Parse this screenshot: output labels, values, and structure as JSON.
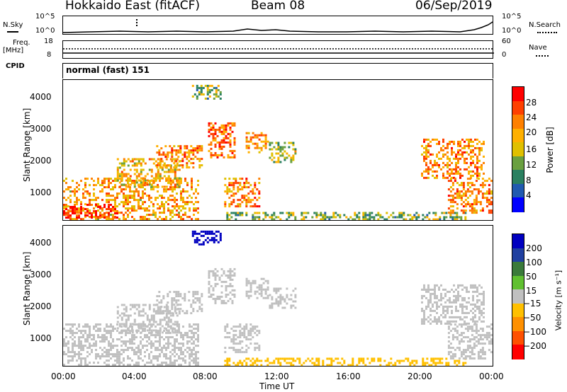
{
  "header": {
    "title": "Hokkaido East (fitACF)",
    "beam": "Beam 08",
    "date": "06/Sep/2019"
  },
  "strip1": {
    "left_label": "N.Sky",
    "right_label": "N.Search",
    "left_ticks": [
      "10^5",
      "10^0"
    ],
    "right_ticks": [
      "10^5",
      "10^0"
    ]
  },
  "strip2": {
    "left_label_1": "Freq.",
    "left_label_2": "[MHz]",
    "right_label": "Nave",
    "left_ticks": [
      "18",
      "8"
    ],
    "right_ticks": [
      "60",
      "0"
    ]
  },
  "strip3": {
    "left_label": "CPID",
    "mode_text": "normal (fast)  151"
  },
  "panels": {
    "ylabel": "Slant Range [km]",
    "yticks": [
      "4000",
      "3000",
      "2000",
      "1000"
    ],
    "xlabel": "Time UT",
    "xticks": [
      "00:00",
      "04:00",
      "08:00",
      "12:00",
      "16:00",
      "20:00",
      "00:00"
    ]
  },
  "power_colorbar": {
    "label": "Power [dB]",
    "ticks": [
      "28",
      "24",
      "20",
      "16",
      "12",
      "8",
      "4"
    ],
    "colors": [
      "#ff0000",
      "#ff4000",
      "#ff8000",
      "#ffb000",
      "#e0c000",
      "#6aa040",
      "#2a8060",
      "#205ab0",
      "#0000ff"
    ]
  },
  "velocity_colorbar": {
    "label": "Velocity [m s⁻¹]",
    "ticks": [
      "200",
      "100",
      "50",
      "15",
      "−15",
      "−50",
      "−100",
      "−200"
    ],
    "colors": [
      "#0000c0",
      "#2040a0",
      "#3a7a3a",
      "#60c030",
      "#c0c0c0",
      "#ffc000",
      "#ff9000",
      "#ff5000",
      "#ff0000"
    ]
  },
  "chart_data": [
    {
      "type": "heatmap",
      "title": "Power [dB]",
      "xlabel": "Time UT",
      "ylabel": "Slant Range [km]",
      "xlim": [
        0,
        24
      ],
      "ylim": [
        200,
        4500
      ],
      "patches": [
        {
          "t0": 0.0,
          "t1": 7.5,
          "r0": 250,
          "r1": 1500,
          "value": 20
        },
        {
          "t0": 0.0,
          "t1": 3.0,
          "r0": 250,
          "r1": 700,
          "value": 28
        },
        {
          "t0": 3.0,
          "t1": 6.5,
          "r0": 1200,
          "r1": 2100,
          "value": 18
        },
        {
          "t0": 5.2,
          "t1": 7.8,
          "r0": 1800,
          "r1": 2500,
          "value": 22
        },
        {
          "t0": 7.2,
          "t1": 8.8,
          "r0": 3950,
          "r1": 4350,
          "value": 12
        },
        {
          "t0": 8.1,
          "t1": 9.6,
          "r0": 2100,
          "r1": 3200,
          "value": 24
        },
        {
          "t0": 10.2,
          "t1": 11.5,
          "r0": 2300,
          "r1": 2900,
          "value": 20
        },
        {
          "t0": 9.0,
          "t1": 11.0,
          "r0": 600,
          "r1": 1500,
          "value": 22
        },
        {
          "t0": 11.5,
          "t1": 13.0,
          "r0": 2000,
          "r1": 2600,
          "value": 14
        },
        {
          "t0": 9.0,
          "t1": 22.5,
          "r0": 250,
          "r1": 450,
          "value": 12
        },
        {
          "t0": 20.0,
          "t1": 23.5,
          "r0": 1500,
          "r1": 2700,
          "value": 22
        },
        {
          "t0": 21.5,
          "t1": 24.0,
          "r0": 400,
          "r1": 1500,
          "value": 22
        }
      ]
    },
    {
      "type": "heatmap",
      "title": "Velocity [m s⁻¹]",
      "xlabel": "Time UT",
      "ylabel": "Slant Range [km]",
      "xlim": [
        0,
        24
      ],
      "ylim": [
        200,
        4500
      ],
      "patches": [
        {
          "t0": 0.0,
          "t1": 7.5,
          "r0": 250,
          "r1": 1500,
          "value": 0
        },
        {
          "t0": 3.0,
          "t1": 6.5,
          "r0": 1200,
          "r1": 2100,
          "value": 0
        },
        {
          "t0": 5.2,
          "t1": 7.8,
          "r0": 1800,
          "r1": 2500,
          "value": 0
        },
        {
          "t0": 7.2,
          "t1": 8.8,
          "r0": 3950,
          "r1": 4350,
          "value": 220
        },
        {
          "t0": 8.1,
          "t1": 9.6,
          "r0": 2100,
          "r1": 3200,
          "value": 0
        },
        {
          "t0": 10.2,
          "t1": 11.5,
          "r0": 2300,
          "r1": 2900,
          "value": 0
        },
        {
          "t0": 9.0,
          "t1": 11.0,
          "r0": 600,
          "r1": 1500,
          "value": 0
        },
        {
          "t0": 11.5,
          "t1": 13.0,
          "r0": 2000,
          "r1": 2600,
          "value": 0
        },
        {
          "t0": 9.0,
          "t1": 22.5,
          "r0": 250,
          "r1": 450,
          "value": -40
        },
        {
          "t0": 20.0,
          "t1": 23.5,
          "r0": 1500,
          "r1": 2700,
          "value": 0
        },
        {
          "t0": 21.5,
          "t1": 24.0,
          "r0": 400,
          "r1": 1500,
          "value": 0
        }
      ]
    }
  ]
}
